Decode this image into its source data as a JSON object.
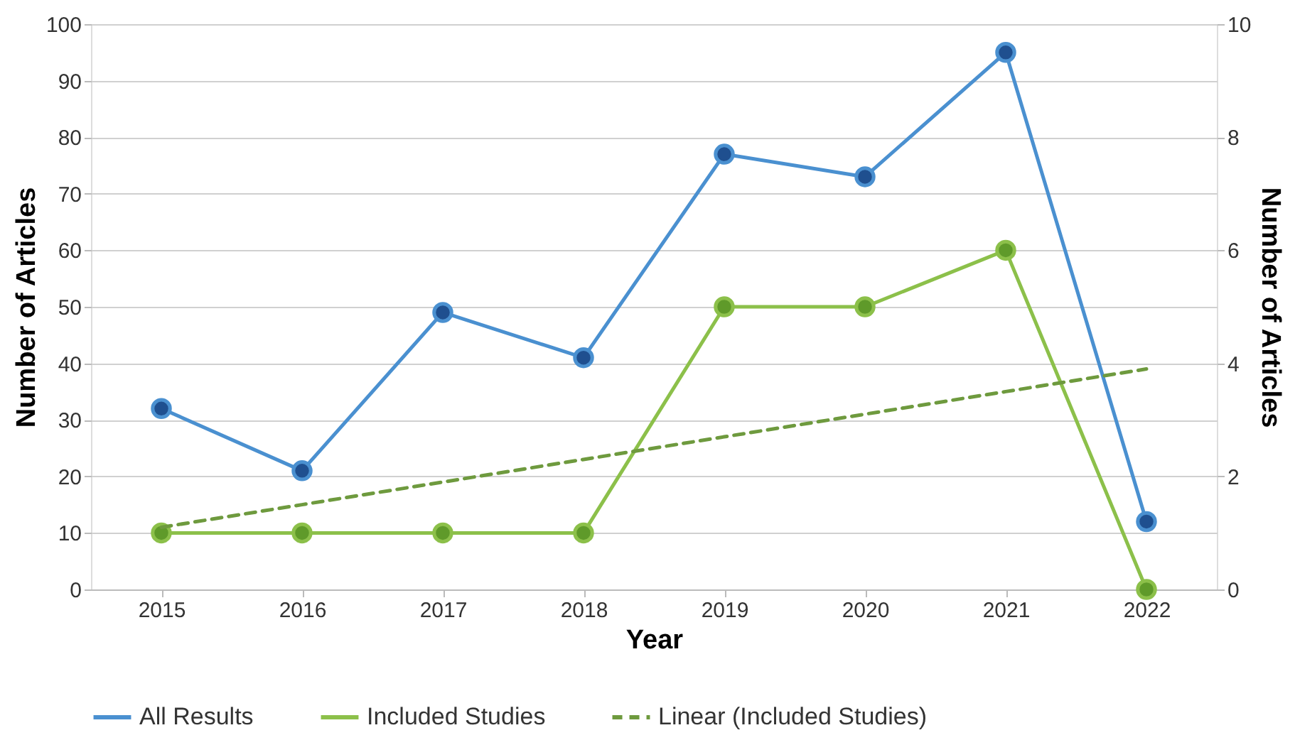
{
  "chart_data": {
    "type": "line",
    "xlabel": "Year",
    "ylabel": "Number of Articles",
    "y2label": "Number of Articles",
    "categories": [
      "2015",
      "2016",
      "2017",
      "2018",
      "2019",
      "2020",
      "2021",
      "2022"
    ],
    "series": [
      {
        "name": "All Results",
        "color": "#4a90d0",
        "values": [
          32,
          21,
          49,
          41,
          77,
          73,
          95,
          12
        ],
        "marker": "circle",
        "line_style": "solid"
      },
      {
        "name": "Included Studies",
        "color": "#8cc04a",
        "values": [
          1,
          1,
          1,
          1,
          5,
          5,
          6,
          0
        ],
        "axis": "y2",
        "marker": "circle",
        "line_style": "solid"
      },
      {
        "name": "Linear (Included Studies)",
        "color": "#6e9a3e",
        "values": [
          1.1,
          1.5,
          1.9,
          2.3,
          2.7,
          3.1,
          3.5,
          3.9
        ],
        "axis": "y2",
        "marker": "none",
        "line_style": "dashed"
      }
    ],
    "ylim": [
      0,
      100
    ],
    "yticks": [
      0,
      10,
      20,
      30,
      40,
      50,
      60,
      70,
      80,
      90,
      100
    ],
    "y2lim": [
      0,
      10
    ],
    "y2ticks": [
      0,
      2,
      4,
      6,
      8,
      10
    ],
    "grid": "y",
    "legend": "bottom"
  }
}
